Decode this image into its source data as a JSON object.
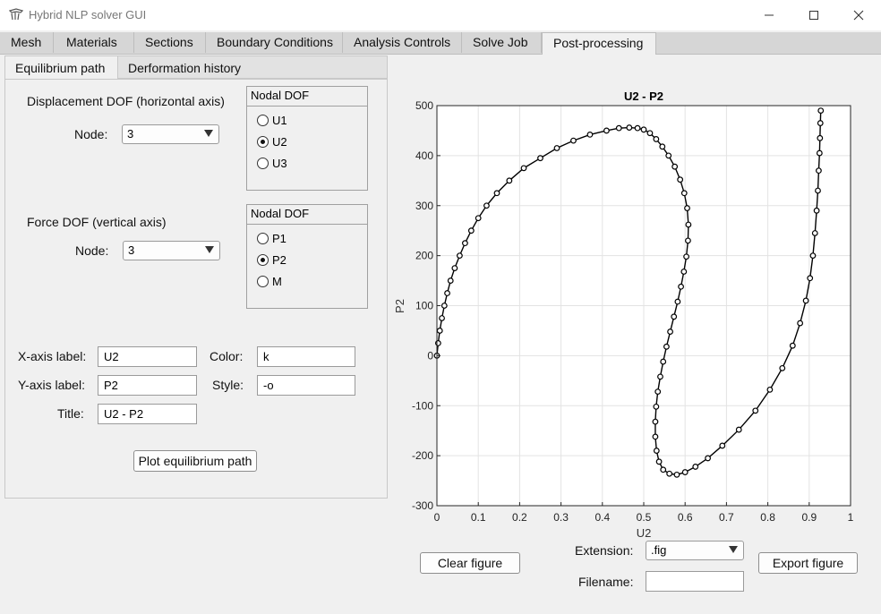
{
  "window": {
    "title": "Hybrid NLP solver GUI",
    "controls": [
      "minimize",
      "maximize",
      "close"
    ]
  },
  "main_tabs": [
    {
      "label": "Mesh"
    },
    {
      "label": "Materials"
    },
    {
      "label": "Sections"
    },
    {
      "label": "Boundary Conditions"
    },
    {
      "label": "Analysis Controls"
    },
    {
      "label": "Solve Job"
    },
    {
      "label": "Post-processing",
      "active": true
    }
  ],
  "sub_tabs": [
    {
      "label": "Equilibrium path",
      "active": true
    },
    {
      "label": "Derformation history"
    }
  ],
  "displacement": {
    "heading": "Displacement DOF (horizontal axis)",
    "node_label": "Node:",
    "node_value": "3",
    "group_title": "Nodal DOF",
    "options": [
      {
        "label": "U1",
        "checked": false
      },
      {
        "label": "U2",
        "checked": true
      },
      {
        "label": "U3",
        "checked": false
      }
    ]
  },
  "force": {
    "heading": "Force DOF (vertical axis)",
    "node_label": "Node:",
    "node_value": "3",
    "group_title": "Nodal DOF",
    "options": [
      {
        "label": "P1",
        "checked": false
      },
      {
        "label": "P2",
        "checked": true
      },
      {
        "label": "M",
        "checked": false
      }
    ]
  },
  "form": {
    "xaxis_label": "X-axis label:",
    "xaxis_value": "U2",
    "yaxis_label": "Y-axis label:",
    "yaxis_value": "P2",
    "title_label": "Title:",
    "title_value": "U2 - P2",
    "color_label": "Color:",
    "color_value": "k",
    "style_label": "Style:",
    "style_value": "-o"
  },
  "buttons": {
    "plot": "Plot equilibrium path",
    "clear": "Clear figure",
    "export": "Export figure"
  },
  "export": {
    "extension_label": "Extension:",
    "extension_value": ".fig",
    "filename_label": "Filename:",
    "filename_value": ""
  },
  "chart_data": {
    "type": "line",
    "title": "U2 - P2",
    "xlabel": "U2",
    "ylabel": "P2",
    "xlim": [
      0,
      1
    ],
    "ylim": [
      -300,
      500
    ],
    "xticks": [
      "0",
      "0.1",
      "0.2",
      "0.3",
      "0.4",
      "0.5",
      "0.6",
      "0.7",
      "0.8",
      "0.9",
      "1"
    ],
    "yticks": [
      "-300",
      "-200",
      "-100",
      "0",
      "100",
      "200",
      "300",
      "400",
      "500"
    ],
    "grid": true,
    "marker": "o",
    "color": "#000000",
    "series": [
      {
        "x": [
          0.0,
          0.003,
          0.007,
          0.012,
          0.018,
          0.025,
          0.033,
          0.043,
          0.055,
          0.068,
          0.083,
          0.1,
          0.12,
          0.145,
          0.175,
          0.21,
          0.25,
          0.29,
          0.33,
          0.37,
          0.41,
          0.44,
          0.465,
          0.485,
          0.5,
          0.515,
          0.53,
          0.545,
          0.56,
          0.575,
          0.588,
          0.598,
          0.605,
          0.608,
          0.607,
          0.603,
          0.597,
          0.59,
          0.582,
          0.573,
          0.564,
          0.555,
          0.547,
          0.54,
          0.534,
          0.53,
          0.528,
          0.528,
          0.531,
          0.537,
          0.547,
          0.562,
          0.58,
          0.6,
          0.625,
          0.655,
          0.69,
          0.73,
          0.77,
          0.805,
          0.835,
          0.86,
          0.878,
          0.892,
          0.902,
          0.909,
          0.914,
          0.918,
          0.921,
          0.923,
          0.925,
          0.926,
          0.927,
          0.928
        ],
        "y": [
          0,
          25,
          50,
          75,
          100,
          125,
          150,
          175,
          200,
          225,
          250,
          275,
          300,
          325,
          350,
          375,
          395,
          415,
          430,
          442,
          450,
          455,
          456,
          455,
          452,
          445,
          433,
          418,
          400,
          378,
          352,
          325,
          295,
          262,
          230,
          198,
          168,
          138,
          108,
          78,
          48,
          18,
          -12,
          -42,
          -72,
          -102,
          -132,
          -162,
          -190,
          -212,
          -228,
          -236,
          -238,
          -233,
          -222,
          -205,
          -180,
          -148,
          -110,
          -68,
          -25,
          20,
          65,
          110,
          155,
          200,
          245,
          290,
          330,
          370,
          405,
          435,
          465,
          490
        ]
      }
    ]
  }
}
